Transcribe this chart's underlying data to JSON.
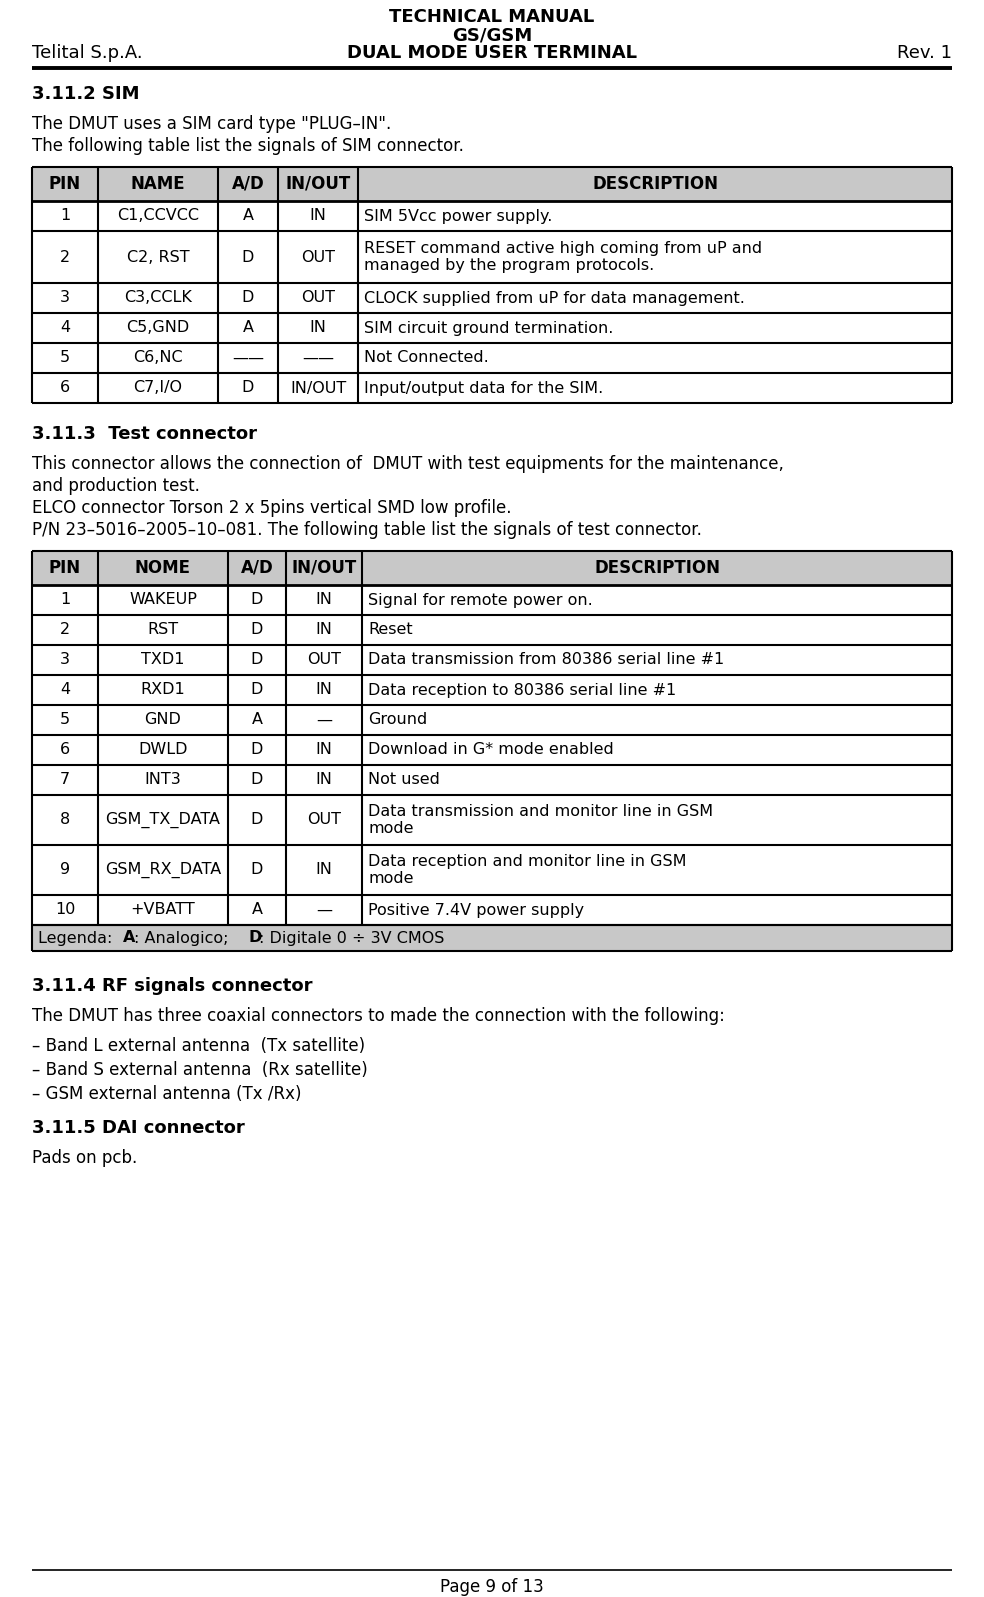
{
  "header_left": "Telital S.p.A.",
  "header_center_line1": "TECHNICAL MANUAL",
  "header_center_line2": "GS/GSM",
  "header_center_line3": "DUAL MODE USER TERMINAL",
  "header_right": "Rev. 1",
  "footer_text": "Page 9 of 13",
  "section1_title": "3.11.2 SIM",
  "section1_para1": "The DMUT uses a SIM card type \"PLUG–IN\".",
  "section1_para2": "The following table list the signals of SIM connector.",
  "sim_table_headers": [
    "PIN",
    "NAME",
    "A/D",
    "IN/OUT",
    "DESCRIPTION"
  ],
  "sim_table_rows": [
    [
      "1",
      "C1,CCVCC",
      "A",
      "IN",
      "SIM 5Vcc power supply."
    ],
    [
      "2",
      "C2, RST",
      "D",
      "OUT",
      "RESET command active high coming from uP and\nmanaged by the program protocols."
    ],
    [
      "3",
      "C3,CCLK",
      "D",
      "OUT",
      "CLOCK supplied from uP for data management."
    ],
    [
      "4",
      "C5,GND",
      "A",
      "IN",
      "SIM circuit ground termination."
    ],
    [
      "5",
      "C6,NC",
      "——",
      "——",
      "Not Connected."
    ],
    [
      "6",
      "C7,I/O",
      "D",
      "IN/OUT",
      "Input/output data for the SIM."
    ]
  ],
  "sim_row_heights": [
    30,
    52,
    30,
    30,
    30,
    30
  ],
  "section2_title": "3.11.3  Test connector",
  "section2_para1": "This connector allows the connection of  DMUT with test equipments for the maintenance,",
  "section2_para1b": "and production test.",
  "section2_para2": "ELCO connector Torson 2 x 5pins vertical SMD low profile.",
  "section2_para3": "P/N 23–5016–2005–10–081. The following table list the signals of test connector.",
  "test_table_headers": [
    "PIN",
    "NOME",
    "A/D",
    "IN/OUT",
    "DESCRIPTION"
  ],
  "test_table_rows": [
    [
      "1",
      "WAKEUP",
      "D",
      "IN",
      "Signal for remote power on."
    ],
    [
      "2",
      "RST",
      "D",
      "IN",
      "Reset"
    ],
    [
      "3",
      "TXD1",
      "D",
      "OUT",
      "Data transmission from 80386 serial line #1"
    ],
    [
      "4",
      "RXD1",
      "D",
      "IN",
      "Data reception to 80386 serial line #1"
    ],
    [
      "5",
      "GND",
      "A",
      "—",
      "Ground"
    ],
    [
      "6",
      "DWLD",
      "D",
      "IN",
      "Download in G* mode enabled"
    ],
    [
      "7",
      "INT3",
      "D",
      "IN",
      "Not used"
    ],
    [
      "8",
      "GSM_TX_DATA",
      "D",
      "OUT",
      "Data transmission and monitor line in GSM\nmode"
    ],
    [
      "9",
      "GSM_RX_DATA",
      "D",
      "IN",
      "Data reception and monitor line in GSM\nmode"
    ],
    [
      "10",
      "+VBATT",
      "A",
      "—",
      "Positive 7.4V power supply"
    ]
  ],
  "test_row_heights": [
    30,
    30,
    30,
    30,
    30,
    30,
    30,
    50,
    50,
    30
  ],
  "section3_title": "3.11.4 RF signals connector",
  "section3_para": "The DMUT has three coaxial connectors to made the connection with the following:",
  "section3_bullets": [
    "– Band L external antenna  (Tx satellite) ",
    "– Band S external antenna  (Rx satellite)",
    "– GSM external antenna (Tx /Rx)"
  ],
  "section4_title": "3.11.5 DAI connector",
  "section4_para": "Pads on pcb.",
  "bg_color": "#ffffff",
  "text_color": "#000000",
  "table_header_bg": "#c8c8c8",
  "border_color": "#000000",
  "header_fs": 13,
  "body_fs": 12,
  "section_title_fs": 13,
  "table_header_fs": 12,
  "table_body_fs": 11.5
}
